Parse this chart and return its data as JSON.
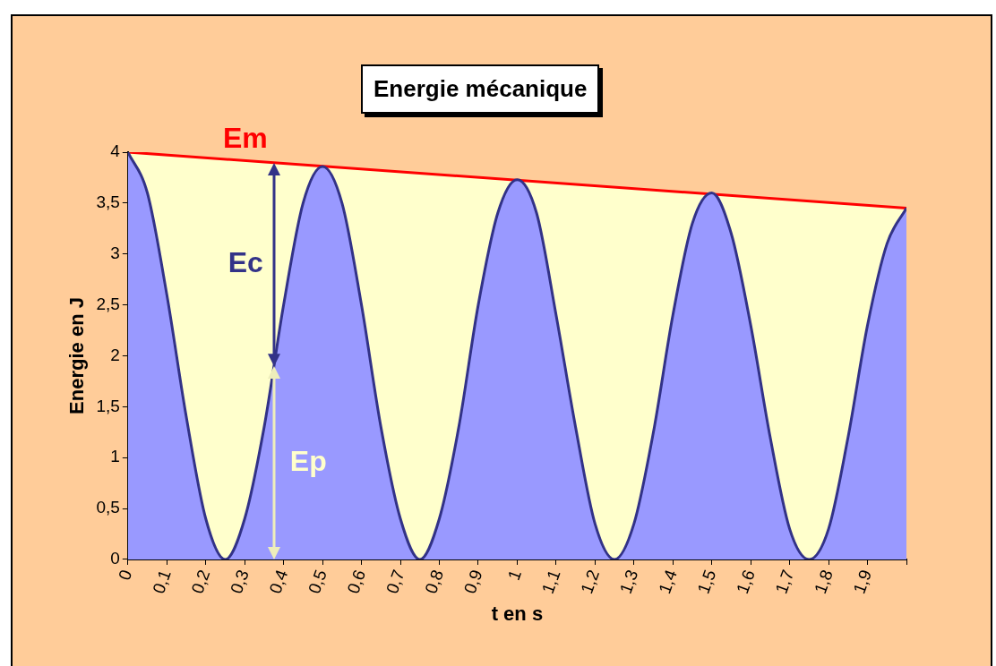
{
  "chart_data": {
    "type": "area",
    "title": "Energie mécanique",
    "xlabel": "t en s",
    "ylabel": "Energie en J",
    "x": [
      0,
      0.05,
      0.1,
      0.15,
      0.2,
      0.25,
      0.3,
      0.35,
      0.4,
      0.45,
      0.5,
      0.55,
      0.6,
      0.65,
      0.7,
      0.75,
      0.8,
      0.85,
      0.9,
      0.95,
      1,
      1.05,
      1.1,
      1.15,
      1.2,
      1.25,
      1.3,
      1.35,
      1.4,
      1.45,
      1.5,
      1.55,
      1.6,
      1.65,
      1.7,
      1.75,
      1.8,
      1.85,
      1.9,
      1.95,
      2
    ],
    "series": [
      {
        "name": "Ep",
        "color": "#9999ff",
        "values": [
          4,
          3.6,
          2.6,
          1.4,
          0.4,
          0,
          0.4,
          1.3,
          2.5,
          3.5,
          3.86,
          3.5,
          2.5,
          1.3,
          0.4,
          0,
          0.4,
          1.3,
          2.5,
          3.4,
          3.73,
          3.4,
          2.4,
          1.3,
          0.35,
          0,
          0.35,
          1.25,
          2.4,
          3.3,
          3.6,
          3.2,
          2.3,
          1.2,
          0.3,
          0,
          0.3,
          1.2,
          2.3,
          3.1,
          3.45
        ]
      },
      {
        "type": "line",
        "name": "Em",
        "color": "#ff0000",
        "x": [
          0,
          2
        ],
        "values": [
          4,
          3.45
        ]
      }
    ],
    "annotations": [
      "Ec"
    ],
    "xlim": [
      0,
      2
    ],
    "xticks": [
      0,
      {
        "value": 0.1,
        "label": "0,1"
      },
      {
        "value": 0.2,
        "label": "0,2"
      },
      {
        "value": 0.3,
        "label": "0,3"
      },
      {
        "value": 0.4,
        "label": "0,4"
      },
      {
        "value": 0.5,
        "label": "0,5"
      },
      {
        "value": 0.6,
        "label": "0,6"
      },
      {
        "value": 0.7,
        "label": "0,7"
      },
      {
        "value": 0.8,
        "label": "0,8"
      },
      {
        "value": 0.9,
        "label": "0,9"
      },
      1,
      {
        "value": 1.1,
        "label": "1,1"
      },
      {
        "value": 1.2,
        "label": "1,2"
      },
      {
        "value": 1.3,
        "label": "1,3"
      },
      {
        "value": 1.4,
        "label": "1,4"
      },
      {
        "value": 1.5,
        "label": "1,5"
      },
      {
        "value": 1.6,
        "label": "1,6"
      },
      {
        "value": 1.7,
        "label": "1,7"
      },
      {
        "value": 1.8,
        "label": "1,8"
      },
      {
        "value": 1.9,
        "label": "1,9"
      },
      {
        "value": 2,
        "label": null
      }
    ],
    "ylim": [
      0,
      4
    ],
    "yticks": [
      0,
      {
        "value": 0.5,
        "label": "0,5"
      },
      1,
      {
        "value": 1.5,
        "label": "1,5"
      },
      2,
      {
        "value": 2.5,
        "label": "2,5"
      },
      3,
      {
        "value": 3.5,
        "label": "3,5"
      },
      4
    ],
    "legend": false
  }
}
